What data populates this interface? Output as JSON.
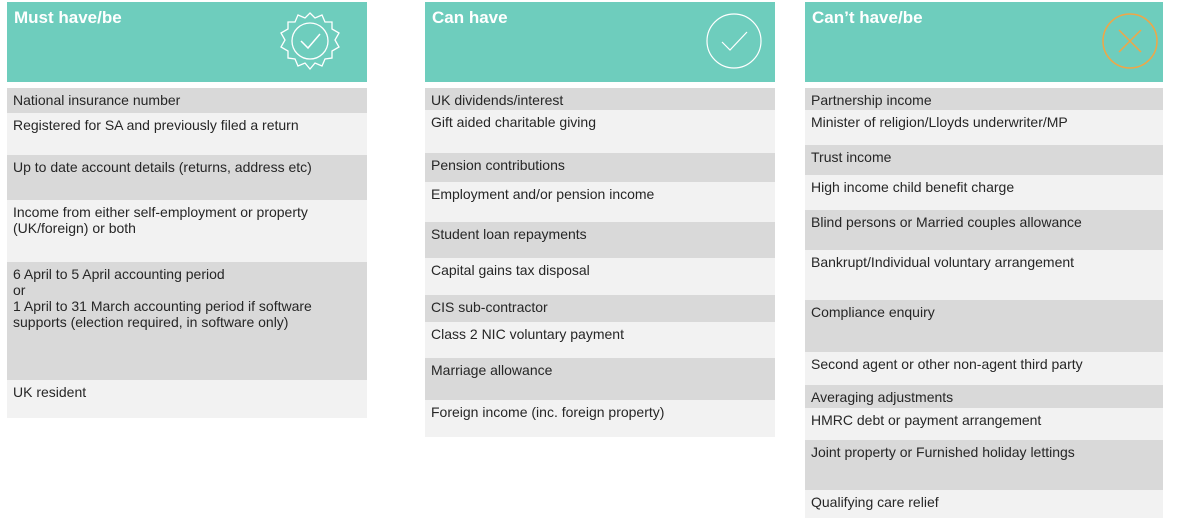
{
  "columns": [
    {
      "title": "Must have/be",
      "rows": [
        "National insurance number",
        "Registered for SA and previously filed a return",
        "Up to date account details (returns, address etc)",
        "Income from either self-employment or property (UK/foreign) or both",
        "6 April to 5 April accounting period\nor\n1 April to 31 March accounting period if software\nsupports (election required, in software only)",
        "UK resident"
      ]
    },
    {
      "title": "Can have",
      "rows": [
        "UK dividends/interest",
        "Gift aided charitable giving",
        "Pension contributions",
        "Employment and/or pension income",
        "Student loan repayments",
        "Capital gains tax disposal",
        "CIS sub-contractor",
        "Class 2 NIC voluntary payment",
        "Marriage allowance",
        "Foreign income (inc. foreign property)"
      ]
    },
    {
      "title": "Can’t have/be",
      "rows": [
        "Partnership income",
        "Minister of religion/Lloyds underwriter/MP",
        "Trust income",
        "High income child benefit charge",
        "Blind persons or Married couples allowance",
        "Bankrupt/Individual voluntary arrangement",
        "Compliance enquiry",
        "Second agent or other non-agent third party",
        "Averaging adjustments",
        "HMRC debt or payment arrangement",
        "Joint property or Furnished holiday lettings",
        "Qualifying care relief"
      ]
    }
  ]
}
